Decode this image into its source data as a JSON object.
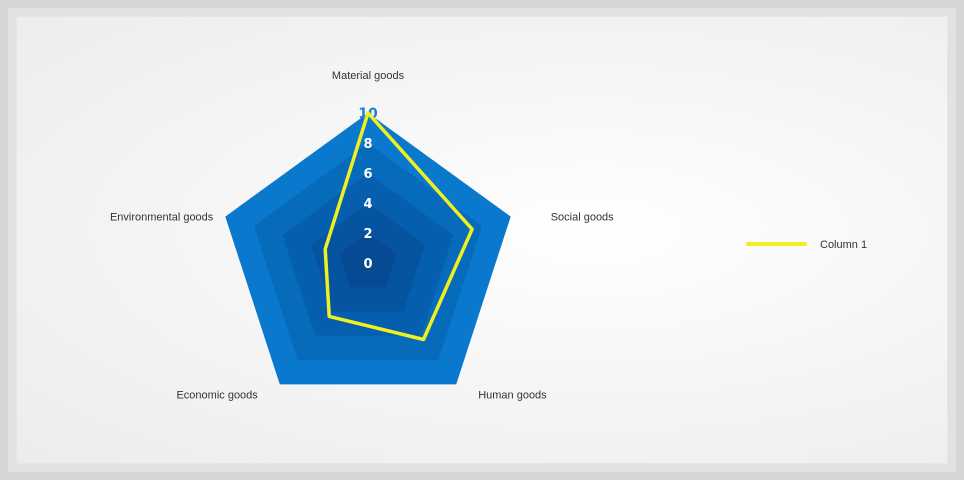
{
  "chart_data": {
    "type": "radar",
    "categories": [
      "Material goods",
      "Social goods",
      "Human goods",
      "Economic goods",
      "Environmental goods"
    ],
    "ticks": [
      "0",
      "2",
      "4",
      "6",
      "8",
      "10"
    ],
    "rmin": 0,
    "rmax": 10,
    "series": [
      {
        "name": "Column 1",
        "values": [
          10,
          7.3,
          6.3,
          4.4,
          3.0
        ],
        "color": "#f0f020"
      }
    ],
    "band_colors": [
      "#0a78cc",
      "#076bbc",
      "#065eae",
      "#0653a0",
      "#054a93"
    ],
    "legend": {
      "position": "right"
    }
  }
}
